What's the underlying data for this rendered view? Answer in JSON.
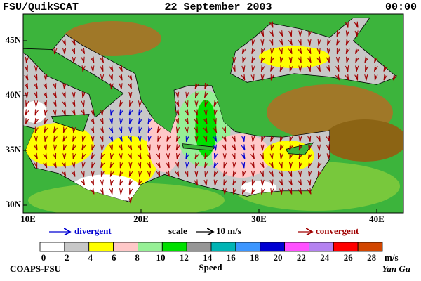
{
  "header": {
    "left": "FSU/QuikSCAT",
    "center": "22 September 2003",
    "right": "00:00"
  },
  "map": {
    "lat_labels": [
      "45N",
      "40N",
      "35N",
      "30N"
    ],
    "lon_labels": [
      "10E",
      "20E",
      "30E",
      "40E"
    ]
  },
  "legend": {
    "divergent": "divergent",
    "scale": "scale",
    "scale_value": "10 m/s",
    "convergent": "convergent"
  },
  "colorbar": {
    "ticks": [
      0,
      2,
      4,
      6,
      8,
      10,
      12,
      14,
      16,
      18,
      20,
      22,
      24,
      26,
      28
    ],
    "unit": "m/s",
    "colors": [
      "#ffffff",
      "#c8c8c8",
      "#ffff00",
      "#ffc8c8",
      "#96f096",
      "#00e000",
      "#969696",
      "#00b4b4",
      "#3c96ff",
      "#0000d2",
      "#ff50ff",
      "#b482f0",
      "#ff0000",
      "#d24600",
      "#000000"
    ],
    "title": "Speed"
  },
  "footer": {
    "left": "COAPS-FSU",
    "right": "Yan Gu"
  }
}
